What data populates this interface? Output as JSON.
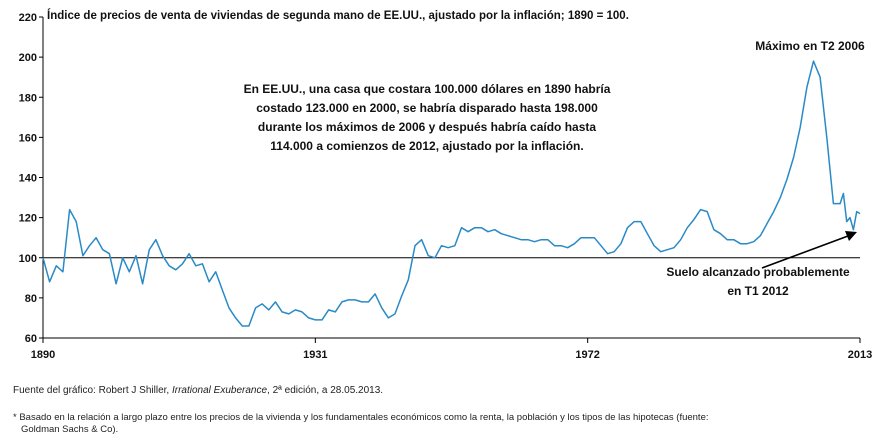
{
  "title": "Índice de precios de venta de viviendas de segunda mano de EE.UU., ajustado por la inflación; 1890 = 100.",
  "source": {
    "prefix": "Fuente del gráfico: Robert J Shiller, ",
    "book": "Irrational Exuberance",
    "suffix": ", 2ª edición, a 28.05.2013."
  },
  "footnote": {
    "line1": "* Basado en la relación a largo plazo entre los precios de la vivienda y los fundamentales económicos como la renta, la población y los tipos de las hipotecas (fuente:",
    "line2": "Goldman Sachs & Co)."
  },
  "colors": {
    "series": "#2a8ac6",
    "axis": "#000000",
    "text": "#111111"
  },
  "chart_data": {
    "type": "line",
    "xlim": [
      1890,
      2013
    ],
    "ylim": [
      60,
      220
    ],
    "x_ticks": [
      "1890",
      "1931",
      "1972",
      "2013"
    ],
    "y_ticks": [
      "60",
      "80",
      "100",
      "120",
      "140",
      "160",
      "180",
      "200",
      "220"
    ],
    "reference_line": 100,
    "grid": false,
    "annotations": {
      "peak": "Máximo en T2 2006",
      "box": [
        "En EE.UU., una casa que costara 100.000 dólares en 1890 habría",
        "costado 123.000 en 2000, se habría disparado hasta 198.000",
        "durante los máximos de 2006 y después habría caído hasta",
        "114.000 a comienzos de 2012, ajustado por la inflación."
      ],
      "floor": [
        "Suelo alcanzado probablemente",
        "en T1 2012"
      ]
    },
    "series": [
      {
        "points": [
          [
            1890,
            100
          ],
          [
            1891,
            88
          ],
          [
            1892,
            96
          ],
          [
            1893,
            93
          ],
          [
            1894,
            124
          ],
          [
            1895,
            118
          ],
          [
            1896,
            101
          ],
          [
            1897,
            106
          ],
          [
            1898,
            110
          ],
          [
            1899,
            104
          ],
          [
            1900,
            102
          ],
          [
            1901,
            87
          ],
          [
            1902,
            100
          ],
          [
            1903,
            93
          ],
          [
            1904,
            101
          ],
          [
            1905,
            87
          ],
          [
            1906,
            104
          ],
          [
            1907,
            109
          ],
          [
            1908,
            101
          ],
          [
            1909,
            96
          ],
          [
            1910,
            94
          ],
          [
            1911,
            97
          ],
          [
            1912,
            102
          ],
          [
            1913,
            96
          ],
          [
            1914,
            97
          ],
          [
            1915,
            88
          ],
          [
            1916,
            93
          ],
          [
            1917,
            84
          ],
          [
            1918,
            75
          ],
          [
            1919,
            70
          ],
          [
            1920,
            66
          ],
          [
            1921,
            66
          ],
          [
            1922,
            75
          ],
          [
            1923,
            77
          ],
          [
            1924,
            74
          ],
          [
            1925,
            78
          ],
          [
            1926,
            73
          ],
          [
            1927,
            72
          ],
          [
            1928,
            74
          ],
          [
            1929,
            73
          ],
          [
            1930,
            70
          ],
          [
            1931,
            69
          ],
          [
            1932,
            69
          ],
          [
            1933,
            74
          ],
          [
            1934,
            73
          ],
          [
            1935,
            78
          ],
          [
            1936,
            79
          ],
          [
            1937,
            79
          ],
          [
            1938,
            78
          ],
          [
            1939,
            78
          ],
          [
            1940,
            82
          ],
          [
            1941,
            75
          ],
          [
            1942,
            70
          ],
          [
            1943,
            72
          ],
          [
            1944,
            81
          ],
          [
            1945,
            89
          ],
          [
            1946,
            106
          ],
          [
            1947,
            109
          ],
          [
            1948,
            101
          ],
          [
            1949,
            100
          ],
          [
            1950,
            106
          ],
          [
            1951,
            105
          ],
          [
            1952,
            106
          ],
          [
            1953,
            115
          ],
          [
            1954,
            113
          ],
          [
            1955,
            115
          ],
          [
            1956,
            115
          ],
          [
            1957,
            113
          ],
          [
            1958,
            114
          ],
          [
            1959,
            112
          ],
          [
            1960,
            111
          ],
          [
            1961,
            110
          ],
          [
            1962,
            109
          ],
          [
            1963,
            109
          ],
          [
            1964,
            108
          ],
          [
            1965,
            109
          ],
          [
            1966,
            109
          ],
          [
            1967,
            106
          ],
          [
            1968,
            106
          ],
          [
            1969,
            105
          ],
          [
            1970,
            107
          ],
          [
            1971,
            110
          ],
          [
            1972,
            110
          ],
          [
            1973,
            110
          ],
          [
            1974,
            106
          ],
          [
            1975,
            102
          ],
          [
            1976,
            103
          ],
          [
            1977,
            107
          ],
          [
            1978,
            115
          ],
          [
            1979,
            118
          ],
          [
            1980,
            118
          ],
          [
            1981,
            112
          ],
          [
            1982,
            106
          ],
          [
            1983,
            103
          ],
          [
            1984,
            104
          ],
          [
            1985,
            105
          ],
          [
            1986,
            109
          ],
          [
            1987,
            115
          ],
          [
            1988,
            119
          ],
          [
            1989,
            124
          ],
          [
            1990,
            123
          ],
          [
            1991,
            114
          ],
          [
            1992,
            112
          ],
          [
            1993,
            109
          ],
          [
            1994,
            109
          ],
          [
            1995,
            107
          ],
          [
            1996,
            107
          ],
          [
            1997,
            108
          ],
          [
            1998,
            111
          ],
          [
            1999,
            117
          ],
          [
            2000,
            123
          ],
          [
            2001,
            130
          ],
          [
            2002,
            139
          ],
          [
            2003,
            150
          ],
          [
            2004,
            165
          ],
          [
            2005,
            185
          ],
          [
            2006,
            198
          ],
          [
            2007,
            190
          ],
          [
            2008,
            160
          ],
          [
            2009,
            127
          ],
          [
            2010,
            127
          ],
          [
            2010.5,
            132
          ],
          [
            2011,
            118
          ],
          [
            2011.5,
            120
          ],
          [
            2012,
            114
          ],
          [
            2012.5,
            123
          ],
          [
            2013,
            122
          ]
        ]
      }
    ]
  }
}
